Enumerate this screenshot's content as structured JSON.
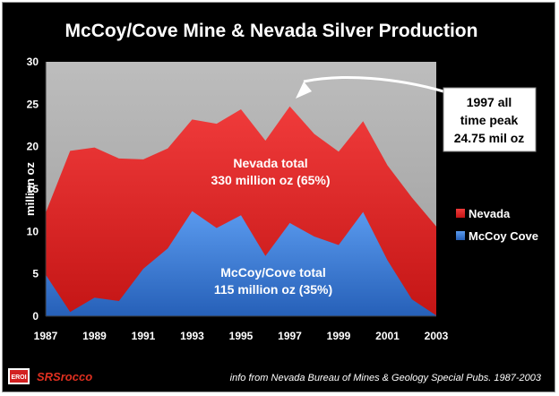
{
  "chart_data": {
    "type": "area",
    "title": "McCoy/Cove Mine & Nevada Silver Production",
    "ylabel": "million oz",
    "ylim": [
      0,
      30
    ],
    "yticks": [
      "0",
      "5",
      "10",
      "15",
      "20",
      "25",
      "30"
    ],
    "x": [
      1987,
      1988,
      1989,
      1990,
      1991,
      1992,
      1993,
      1994,
      1995,
      1996,
      1997,
      1998,
      1999,
      2000,
      2001,
      2002,
      2003
    ],
    "xticks": [
      "1987",
      "1989",
      "1991",
      "1993",
      "1995",
      "1997",
      "1999",
      "2001",
      "2003"
    ],
    "series": [
      {
        "name": "Nevada",
        "color": "#e02a2a",
        "values": [
          12.2,
          19.5,
          19.9,
          18.6,
          18.5,
          19.8,
          23.2,
          22.7,
          24.4,
          20.7,
          24.75,
          21.5,
          19.4,
          23.0,
          17.8,
          14.0,
          10.6
        ]
      },
      {
        "name": "McCoy Cove",
        "color": "#3e7fd6",
        "values": [
          4.9,
          0.5,
          2.2,
          1.8,
          5.6,
          8.0,
          12.4,
          10.4,
          11.9,
          7.1,
          11.0,
          9.4,
          8.4,
          12.3,
          6.6,
          2.0,
          0.1
        ]
      }
    ],
    "grid": false,
    "legend_position": "right"
  },
  "annotations": {
    "nevada_total_line1": "Nevada total",
    "nevada_total_line2": "330 million oz (65%)",
    "mccoy_total_line1": "McCoy/Cove total",
    "mccoy_total_line2": "115 million oz (35%)",
    "peak_line1": "1997 all",
    "peak_line2": "time peak",
    "peak_line3": "24.75 mil oz"
  },
  "legend": {
    "nevada": "Nevada",
    "mccoy": "McCoy Cove"
  },
  "footer": {
    "logo_text": "EROI",
    "brand": "SRSrocco",
    "source": "info from Nevada Bureau of Mines & Geology Special Pubs. 1987-2003"
  }
}
